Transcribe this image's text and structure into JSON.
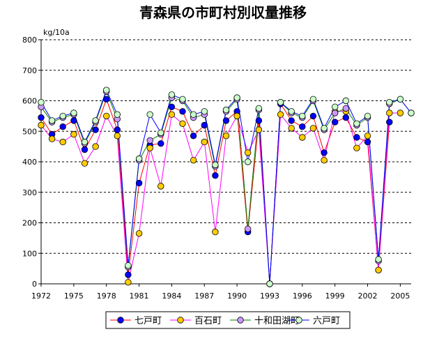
{
  "chart_data": {
    "type": "line",
    "title": "青森県の市町村別収量推移",
    "ylabel": "kg/10a",
    "xlabel": "",
    "ylim": [
      0,
      800
    ],
    "yticks": [
      0,
      100,
      200,
      300,
      400,
      500,
      600,
      700,
      800
    ],
    "xlim": [
      1972,
      2006
    ],
    "xticks": [
      1972,
      1975,
      1978,
      1981,
      1984,
      1987,
      1990,
      1993,
      1996,
      1999,
      2002,
      2005
    ],
    "grid": "horizontal-dashed",
    "legend_position": "bottom",
    "series": [
      {
        "name": "七戸町",
        "color": "#0000ff",
        "line_color": "#ff0000",
        "points": [
          [
            1972,
            545
          ],
          [
            1973,
            490
          ],
          [
            1974,
            515
          ],
          [
            1975,
            535
          ],
          [
            1976,
            440
          ],
          [
            1977,
            505
          ],
          [
            1978,
            605
          ],
          [
            1979,
            505
          ],
          [
            1980,
            30
          ],
          [
            1981,
            330
          ],
          [
            1982,
            455
          ],
          [
            1983,
            460
          ],
          [
            1984,
            580
          ],
          [
            1985,
            565
          ],
          [
            1986,
            485
          ],
          [
            1987,
            520
          ],
          [
            1988,
            355
          ],
          [
            1989,
            535
          ],
          [
            1990,
            565
          ],
          [
            1991,
            170
          ],
          [
            1992,
            535
          ],
          [
            1993,
            0
          ],
          [
            1994,
            590
          ],
          [
            1995,
            535
          ],
          [
            1996,
            515
          ],
          [
            1997,
            550
          ],
          [
            1998,
            430
          ],
          [
            1999,
            530
          ],
          [
            2000,
            545
          ],
          [
            2001,
            480
          ],
          [
            2002,
            465
          ],
          [
            2003,
            45
          ],
          [
            2004,
            530
          ]
        ]
      },
      {
        "name": "百石町",
        "color": "#ffcc00",
        "line_color": "#ff00ff",
        "points": [
          [
            1972,
            520
          ],
          [
            1973,
            475
          ],
          [
            1974,
            465
          ],
          [
            1975,
            490
          ],
          [
            1976,
            395
          ],
          [
            1977,
            450
          ],
          [
            1978,
            550
          ],
          [
            1979,
            485
          ],
          [
            1980,
            5
          ],
          [
            1981,
            165
          ],
          [
            1982,
            445
          ],
          [
            1983,
            320
          ],
          [
            1984,
            555
          ],
          [
            1985,
            525
          ],
          [
            1986,
            405
          ],
          [
            1987,
            465
          ],
          [
            1988,
            170
          ],
          [
            1989,
            485
          ],
          [
            1990,
            550
          ],
          [
            1991,
            430
          ],
          [
            1992,
            505
          ],
          [
            1993,
            0
          ],
          [
            1994,
            555
          ],
          [
            1995,
            510
          ],
          [
            1996,
            480
          ],
          [
            1997,
            510
          ],
          [
            1998,
            405
          ],
          [
            1999,
            565
          ],
          [
            2000,
            565
          ],
          [
            2001,
            445
          ],
          [
            2002,
            485
          ],
          [
            2003,
            45
          ],
          [
            2004,
            560
          ],
          [
            2005,
            560
          ]
        ]
      },
      {
        "name": "十和田湖町",
        "color": "#cc99ff",
        "line_color": "#008000",
        "points": [
          [
            1972,
            580
          ],
          [
            1973,
            530
          ],
          [
            1974,
            545
          ],
          [
            1975,
            555
          ],
          [
            1976,
            460
          ],
          [
            1977,
            530
          ],
          [
            1978,
            630
          ],
          [
            1979,
            540
          ],
          [
            1980,
            55
          ],
          [
            1981,
            405
          ],
          [
            1982,
            470
          ],
          [
            1983,
            490
          ],
          [
            1984,
            610
          ],
          [
            1985,
            600
          ],
          [
            1986,
            545
          ],
          [
            1987,
            555
          ],
          [
            1988,
            385
          ],
          [
            1989,
            565
          ],
          [
            1990,
            605
          ],
          [
            1991,
            180
          ],
          [
            1992,
            570
          ],
          [
            1993,
            0
          ],
          [
            1994,
            595
          ],
          [
            1995,
            560
          ],
          [
            1996,
            545
          ],
          [
            1997,
            600
          ],
          [
            1998,
            505
          ],
          [
            1999,
            560
          ],
          [
            2000,
            575
          ],
          [
            2001,
            520
          ],
          [
            2002,
            545
          ],
          [
            2003,
            75
          ],
          [
            2004,
            590
          ],
          [
            2005,
            605
          ],
          [
            2006,
            560
          ]
        ]
      },
      {
        "name": "六戸町",
        "color": "#ccffcc",
        "line_color": "#0000ff",
        "points": [
          [
            1972,
            595
          ],
          [
            1973,
            535
          ],
          [
            1974,
            550
          ],
          [
            1975,
            560
          ],
          [
            1976,
            465
          ],
          [
            1977,
            535
          ],
          [
            1978,
            635
          ],
          [
            1979,
            555
          ],
          [
            1980,
            60
          ],
          [
            1981,
            410
          ],
          [
            1982,
            555
          ],
          [
            1983,
            495
          ],
          [
            1984,
            620
          ],
          [
            1985,
            605
          ],
          [
            1986,
            555
          ],
          [
            1987,
            565
          ],
          [
            1988,
            390
          ],
          [
            1989,
            570
          ],
          [
            1990,
            610
          ],
          [
            1991,
            400
          ],
          [
            1992,
            575
          ],
          [
            1993,
            0
          ],
          [
            1994,
            595
          ],
          [
            1995,
            565
          ],
          [
            1996,
            550
          ],
          [
            1997,
            605
          ],
          [
            1998,
            510
          ],
          [
            1999,
            580
          ],
          [
            2000,
            600
          ],
          [
            2001,
            525
          ],
          [
            2002,
            550
          ],
          [
            2003,
            80
          ],
          [
            2004,
            595
          ],
          [
            2005,
            605
          ],
          [
            2006,
            560
          ]
        ]
      }
    ]
  }
}
